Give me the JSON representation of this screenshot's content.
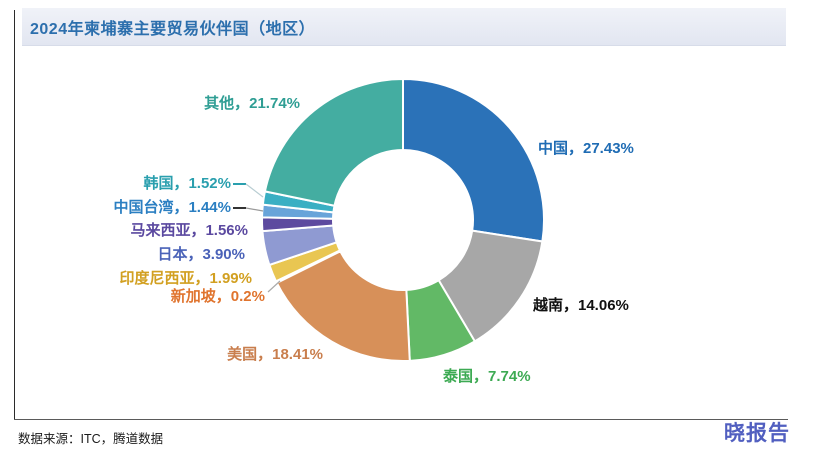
{
  "header": {
    "title": "2024年柬埔寨主要贸易伙伴国（地区）"
  },
  "footer": {
    "source": "数据来源：ITC，腾道数据",
    "brand": "晓报告"
  },
  "chart_data": {
    "type": "pie",
    "donut": true,
    "title": "2024年柬埔寨主要贸易伙伴国（地区）",
    "unit": "%",
    "start_angle_deg": 0,
    "direction": "clockwise",
    "legend_position": "none",
    "slices": [
      {
        "key": "china",
        "name": "中国",
        "value": 27.43,
        "display": "27.43%",
        "label": "中国，27.43%",
        "color": "#2b72b8",
        "label_color": "#1f6cb4"
      },
      {
        "key": "vietnam",
        "name": "越南",
        "value": 14.06,
        "display": "14.06%",
        "label": "越南，14.06%",
        "color": "#a7a7a7",
        "label_color": "#111111"
      },
      {
        "key": "thailand",
        "name": "泰国",
        "value": 7.74,
        "display": "7.74%",
        "label": "泰国，7.74%",
        "color": "#62b966",
        "label_color": "#3daa53"
      },
      {
        "key": "usa",
        "name": "美国",
        "value": 18.41,
        "display": "18.41%",
        "label": "美国，18.41%",
        "color": "#d79059",
        "label_color": "#c97e4d"
      },
      {
        "key": "singapore",
        "name": "新加坡",
        "value": 0.2,
        "display": "0.2%",
        "label": "新加坡，0.2%",
        "color": "#f0e0cc",
        "label_color": "#e0742e"
      },
      {
        "key": "indonesia",
        "name": "印度尼西亚",
        "value": 1.99,
        "display": "1.99%",
        "label": "印度尼西亚，1.99%",
        "color": "#e9c652",
        "label_color": "#d2a021"
      },
      {
        "key": "japan",
        "name": "日本",
        "value": 3.9,
        "display": "3.90%",
        "label": "日本，3.90%",
        "color": "#8f9ad2",
        "label_color": "#4a62b8"
      },
      {
        "key": "malaysia",
        "name": "马来西亚",
        "value": 1.56,
        "display": "1.56%",
        "label": "马来西亚，1.56%",
        "color": "#5d4a9f",
        "label_color": "#5b49a0"
      },
      {
        "key": "taiwan-china",
        "name": "中国台湾",
        "value": 1.44,
        "display": "1.44%",
        "label": "中国台湾，1.44%",
        "color": "#68a4d9",
        "label_color": "#2b7fc2"
      },
      {
        "key": "korea",
        "name": "韩国",
        "value": 1.52,
        "display": "1.52%",
        "label": "韩国，1.52%",
        "color": "#3aafc3",
        "label_color": "#2a9fae"
      },
      {
        "key": "others",
        "name": "其他",
        "value": 21.74,
        "display": "21.74%",
        "label": "其他，21.74%",
        "color": "#44ada1",
        "label_color": "#2f9e94"
      }
    ]
  }
}
